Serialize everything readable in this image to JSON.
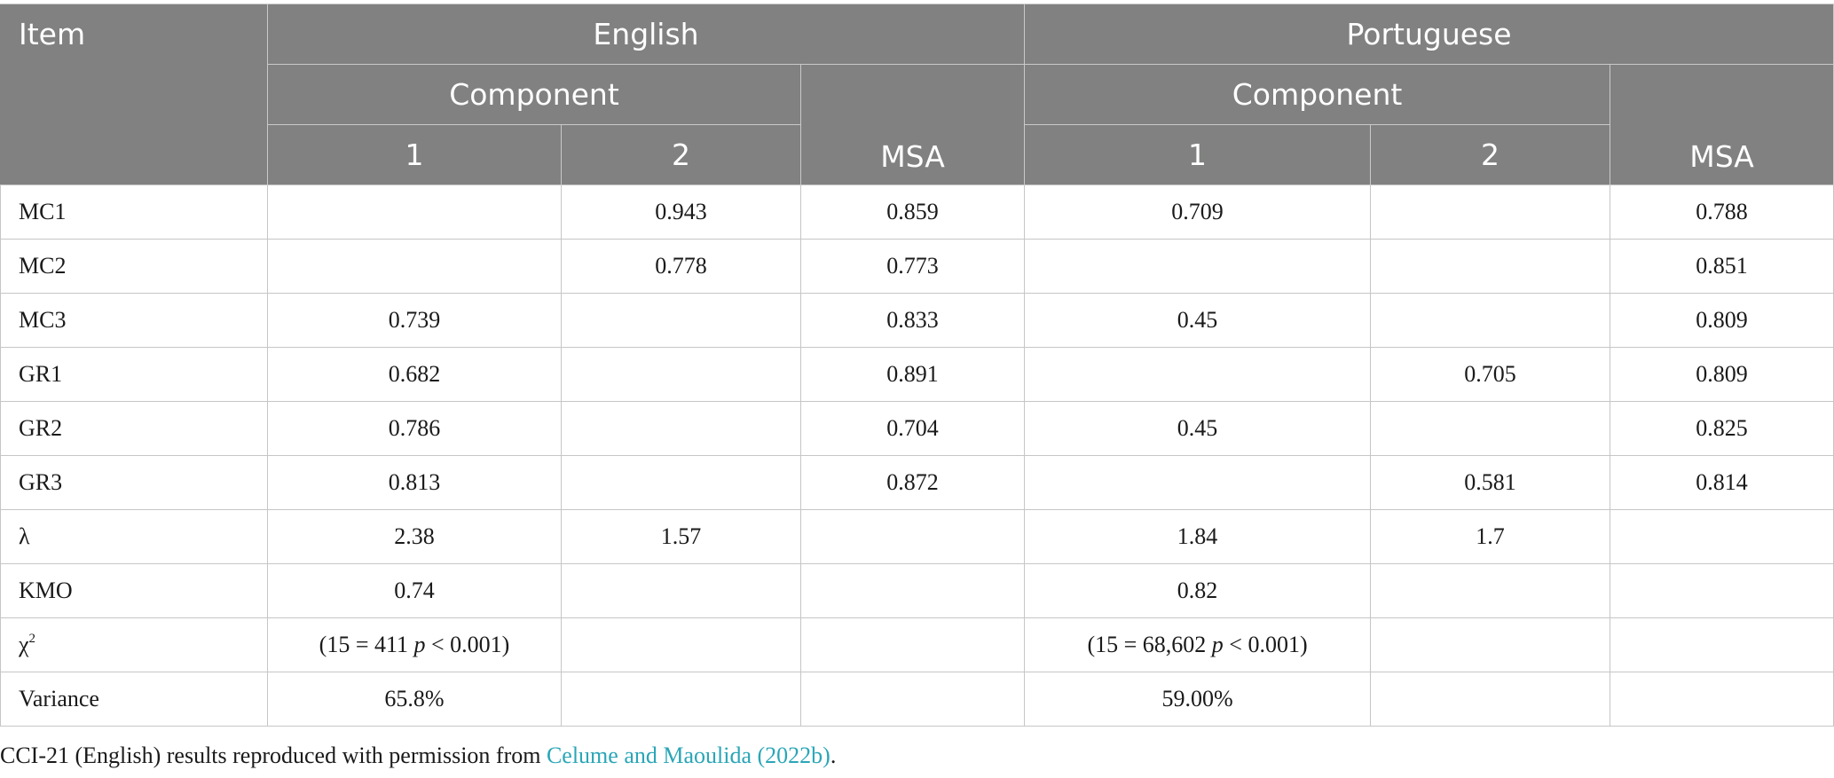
{
  "header": {
    "item": "Item",
    "english": "English",
    "portuguese": "Portuguese",
    "component": "Component",
    "col1": "1",
    "col2": "2",
    "msa": "MSA"
  },
  "rows": [
    {
      "item": "MC1",
      "e1": "",
      "e2": "0.943",
      "emsa": "0.859",
      "p1": "0.709",
      "p2": "",
      "pmsa": "0.788"
    },
    {
      "item": "MC2",
      "e1": "",
      "e2": "0.778",
      "emsa": "0.773",
      "p1": "",
      "p2": "",
      "pmsa": "0.851"
    },
    {
      "item": "MC3",
      "e1": "0.739",
      "e2": "",
      "emsa": "0.833",
      "p1": "0.45",
      "p2": "",
      "pmsa": "0.809"
    },
    {
      "item": "GR1",
      "e1": "0.682",
      "e2": "",
      "emsa": "0.891",
      "p1": "",
      "p2": "0.705",
      "pmsa": "0.809"
    },
    {
      "item": "GR2",
      "e1": "0.786",
      "e2": "",
      "emsa": "0.704",
      "p1": "0.45",
      "p2": "",
      "pmsa": "0.825"
    },
    {
      "item": "GR3",
      "e1": "0.813",
      "e2": "",
      "emsa": "0.872",
      "p1": "",
      "p2": "0.581",
      "pmsa": "0.814"
    },
    {
      "item": "λ",
      "e1": "2.38",
      "e2": "1.57",
      "emsa": "",
      "p1": "1.84",
      "p2": "1.7",
      "pmsa": ""
    },
    {
      "item": "KMO",
      "e1": "0.74",
      "e2": "",
      "emsa": "",
      "p1": "0.82",
      "p2": "",
      "pmsa": ""
    }
  ],
  "chi_row": {
    "item_symbol": "χ",
    "item_sup": "2",
    "english": {
      "pre": "(15 = 411 ",
      "p": "p",
      "post": " < 0.001)"
    },
    "portuguese": {
      "pre": "(15 = 68,602 ",
      "p": "p",
      "post": " < 0.001)"
    }
  },
  "variance_row": {
    "item": "Variance",
    "english": "65.8%",
    "portuguese": "59.00%"
  },
  "footnote": {
    "pre": "CCI-21 (English) results reproduced with permission from ",
    "link": "Celume and Maoulida (2022b)",
    "post": "."
  }
}
